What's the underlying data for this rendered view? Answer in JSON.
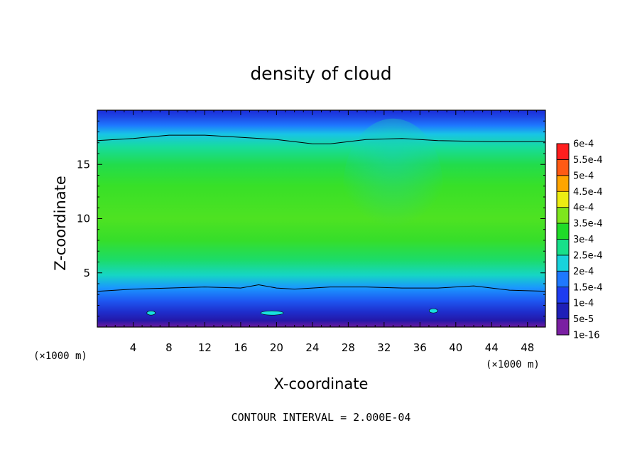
{
  "chart_data": {
    "type": "heatmap",
    "title": "density of cloud",
    "xlabel": "X-coordinate",
    "ylabel": "Z-coordinate",
    "x_unit": "(×1000 m)",
    "z_unit": "(×1000 m)",
    "xlim": [
      0,
      50
    ],
    "ylim": [
      0,
      20
    ],
    "x_ticks": [
      4,
      8,
      12,
      16,
      20,
      24,
      28,
      32,
      36,
      40,
      44,
      48
    ],
    "y_ticks": [
      5,
      10,
      15
    ],
    "contour_interval": "CONTOUR INTERVAL = 2.000E-04",
    "colorbar": {
      "labels": [
        "1e-16",
        "5e-5",
        "1e-4",
        "1.5e-4",
        "2e-4",
        "2.5e-4",
        "3e-4",
        "3.5e-4",
        "4e-4",
        "4.5e-4",
        "5e-4",
        "5.5e-4",
        "6e-4"
      ],
      "colors": [
        "#7a1fa2",
        "#1f1fb8",
        "#1e3cf0",
        "#1e78ff",
        "#18d2dc",
        "#17e08a",
        "#20dc28",
        "#7ee61e",
        "#ecec12",
        "#ffa500",
        "#ff5a14",
        "#ff1e1e",
        "#ff8c8c"
      ]
    },
    "contour_2e-4": {
      "upper": [
        [
          0,
          17.2
        ],
        [
          4,
          17.4
        ],
        [
          8,
          17.7
        ],
        [
          12,
          17.7
        ],
        [
          16,
          17.5
        ],
        [
          20,
          17.3
        ],
        [
          24,
          16.9
        ],
        [
          26,
          16.9
        ],
        [
          30,
          17.3
        ],
        [
          34,
          17.4
        ],
        [
          38,
          17.2
        ],
        [
          44,
          17.1
        ],
        [
          50,
          17.1
        ]
      ],
      "lower": [
        [
          0,
          3.3
        ],
        [
          4,
          3.5
        ],
        [
          8,
          3.6
        ],
        [
          12,
          3.7
        ],
        [
          16,
          3.6
        ],
        [
          18,
          3.9
        ],
        [
          20,
          3.6
        ],
        [
          22,
          3.5
        ],
        [
          26,
          3.7
        ],
        [
          30,
          3.7
        ],
        [
          34,
          3.6
        ],
        [
          38,
          3.6
        ],
        [
          42,
          3.8
        ],
        [
          46,
          3.4
        ],
        [
          50,
          3.3
        ]
      ]
    }
  }
}
